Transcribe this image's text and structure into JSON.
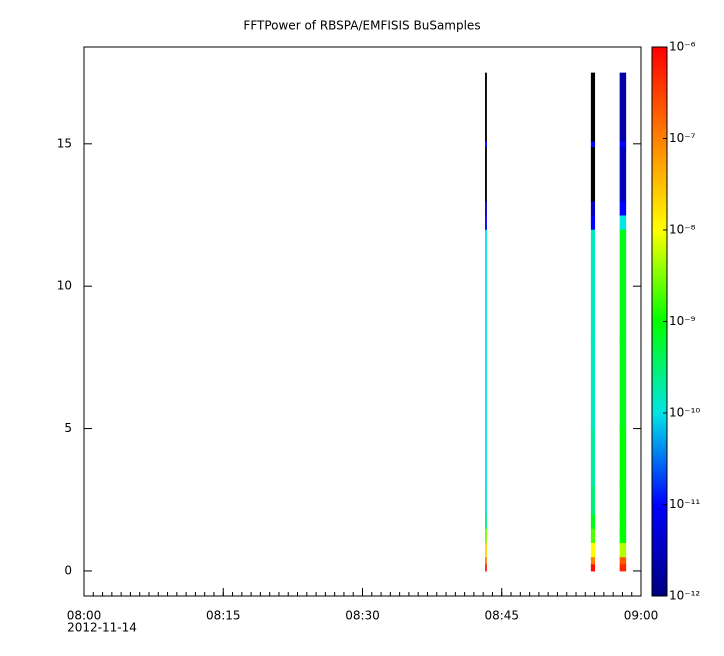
{
  "chart_data": {
    "type": "spectrogram",
    "title": "FFTPower of RBSPA/EMFISIS  BuSamples",
    "xlim": [
      "2012-11-14T08:00:00",
      "2012-11-14T09:00:00"
    ],
    "xticks": [
      {
        "value": "2012-11-14T08:00:00",
        "label": "08:00"
      },
      {
        "value": "2012-11-14T08:15:00",
        "label": "08:15"
      },
      {
        "value": "2012-11-14T08:30:00",
        "label": "08:30"
      },
      {
        "value": "2012-11-14T08:45:00",
        "label": "08:45"
      },
      {
        "value": "2012-11-14T09:00:00",
        "label": "09:00"
      }
    ],
    "x_date_label": "2012-11-14",
    "ylim": [
      -0.88,
      18.4
    ],
    "yticks": [
      0,
      5,
      10,
      15
    ],
    "y_bins": [
      0,
      0.25,
      0.5,
      1,
      1.5,
      2,
      3,
      5,
      8,
      12,
      12.5,
      13,
      14.9,
      15.1,
      17.5
    ],
    "zlim": [
      1e-12,
      1e-06
    ],
    "zscale": "log",
    "zticks": [
      {
        "value": 1e-12,
        "label": "10⁻¹²"
      },
      {
        "value": 1e-11,
        "label": "10⁻¹¹"
      },
      {
        "value": 1e-10,
        "label": "10⁻¹⁰"
      },
      {
        "value": 1e-09,
        "label": "10⁻⁹"
      },
      {
        "value": 1e-08,
        "label": "10⁻⁸"
      },
      {
        "value": 1e-07,
        "label": "10⁻⁷"
      },
      {
        "value": 1e-06,
        "label": "10⁻⁶"
      }
    ],
    "colorscale": [
      "#000080",
      "#0000ff",
      "#00e5e5",
      "#00ff00",
      "#ffff00",
      "#ff8000",
      "#ff0000"
    ],
    "under_color": "#000000",
    "columns": [
      {
        "start": "2012-11-14T08:43:12",
        "end": "2012-11-14T08:43:24",
        "values": [
          5e-07,
          1e-07,
          2e-08,
          3e-09,
          3e-10,
          1.2e-10,
          1e-10,
          1e-10,
          1e-10,
          1e-11,
          3e-12,
          5e-13,
          1e-11,
          5e-13
        ]
      },
      {
        "start": "2012-11-14T08:54:36",
        "end": "2012-11-14T08:55:03",
        "values": [
          8e-07,
          1e-07,
          1e-08,
          2e-09,
          8e-10,
          3e-10,
          2e-10,
          1.5e-10,
          1.5e-10,
          1e-11,
          3e-12,
          5e-13,
          1e-11,
          5e-13
        ]
      },
      {
        "start": "2012-11-14T08:57:42",
        "end": "2012-11-14T08:58:24",
        "values": [
          5e-07,
          2e-07,
          5e-09,
          1e-09,
          1e-09,
          1e-09,
          1e-09,
          8e-10,
          8e-10,
          1e-10,
          1e-11,
          3e-12,
          1e-11,
          2e-12
        ]
      }
    ]
  }
}
